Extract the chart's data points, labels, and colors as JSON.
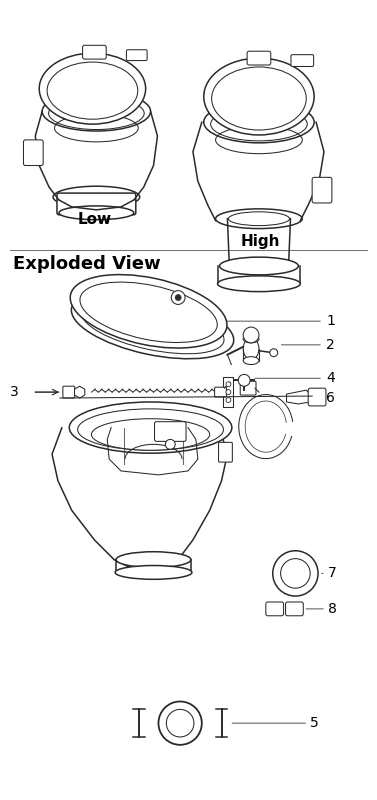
{
  "bg_color": "#ffffff",
  "line_color": "#2a2a2a",
  "text_color": "#000000",
  "label_low": "Low",
  "label_high": "High",
  "section_title": "Exploded View",
  "figsize": [
    3.77,
    8.0
  ],
  "dpi": 100
}
